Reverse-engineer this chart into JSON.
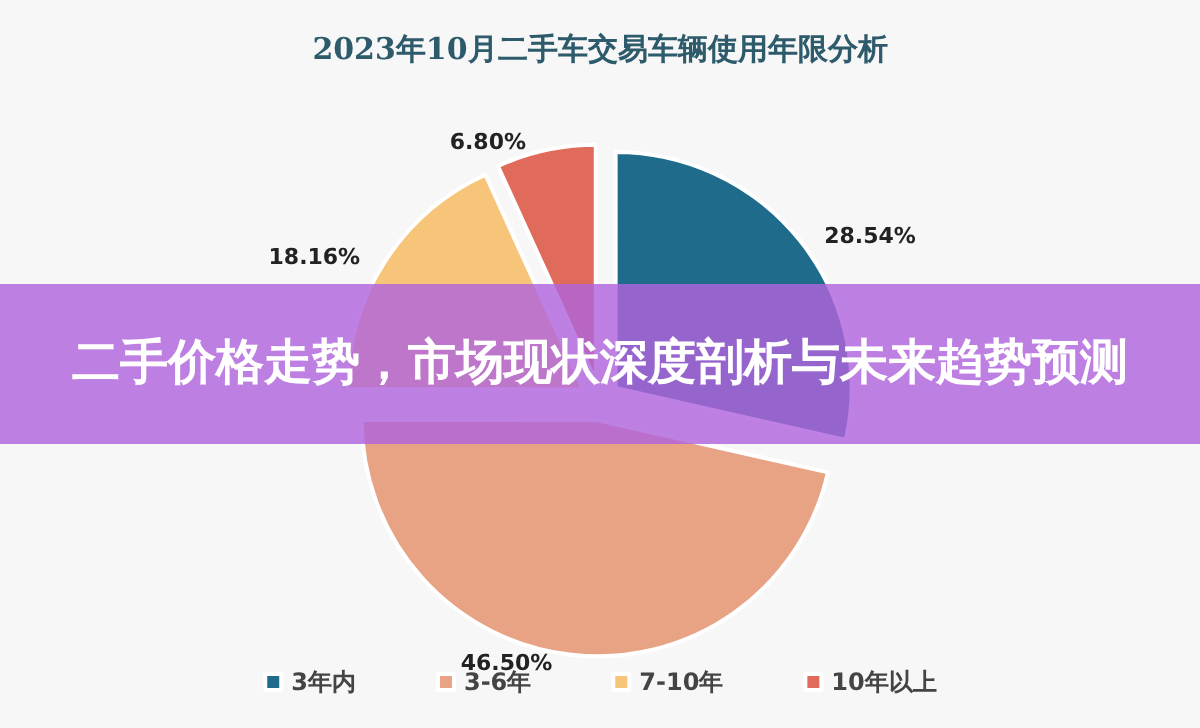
{
  "chart_data": {
    "type": "pie",
    "title": "2023年10月二手车交易车辆使用年限分析",
    "annotations": [
      "二手价格走势，市场现状深度剖析与未来趋势预测"
    ],
    "categories": [
      "3年内",
      "3-6年",
      "7-10年",
      "10年以上"
    ],
    "values": [
      28.54,
      46.5,
      18.16,
      6.8
    ],
    "colors": [
      "#1f6b8c",
      "#e8a385",
      "#f7c57a",
      "#e06b5a"
    ],
    "value_labels": [
      "28.54%",
      "46.50%",
      "18.16%",
      "6.80%"
    ],
    "legend": "bottom"
  }
}
